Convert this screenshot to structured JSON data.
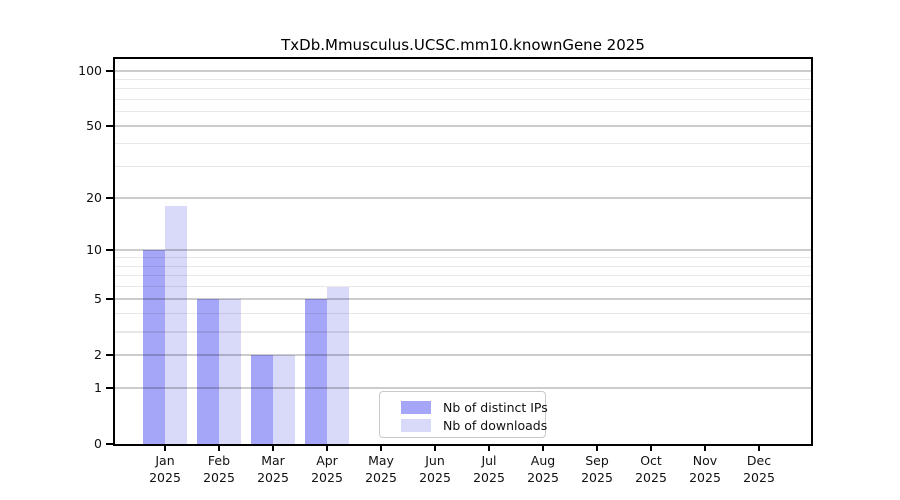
{
  "chart_data": {
    "type": "bar",
    "title": "TxDb.Mmusculus.UCSC.mm10.knownGene 2025",
    "categories": [
      "Jan 2025",
      "Feb 2025",
      "Mar 2025",
      "Apr 2025",
      "May 2025",
      "Jun 2025",
      "Jul 2025",
      "Aug 2025",
      "Sep 2025",
      "Oct 2025",
      "Nov 2025",
      "Dec 2025"
    ],
    "series": [
      {
        "name": "Nb of distinct IPs",
        "color": "#a6a6f8",
        "values": [
          10,
          5,
          2,
          5,
          0,
          0,
          0,
          0,
          0,
          0,
          0,
          0
        ]
      },
      {
        "name": "Nb of downloads",
        "color": "#d9d9fa",
        "values": [
          18,
          5,
          2,
          6,
          0,
          0,
          0,
          0,
          0,
          0,
          0,
          0
        ]
      }
    ],
    "xlabel": "",
    "ylabel": "",
    "yscale": "log1p",
    "ylim": [
      0,
      116
    ],
    "y_major_ticks": [
      0,
      1,
      2,
      5,
      10,
      20,
      50,
      100
    ],
    "y_minor_ticks": [
      3,
      4,
      6,
      7,
      8,
      9,
      30,
      40,
      60,
      70,
      80,
      90
    ],
    "grid": true,
    "grid_on_top_of_bars": true,
    "legend_position": "lower center"
  },
  "colors": {
    "axis": "#000000",
    "text": "#111111",
    "grid_major": "#c9c9c9",
    "grid_minor": "#e9e9e9",
    "background": "#ffffff",
    "legend_border": "#c9c9c9"
  }
}
